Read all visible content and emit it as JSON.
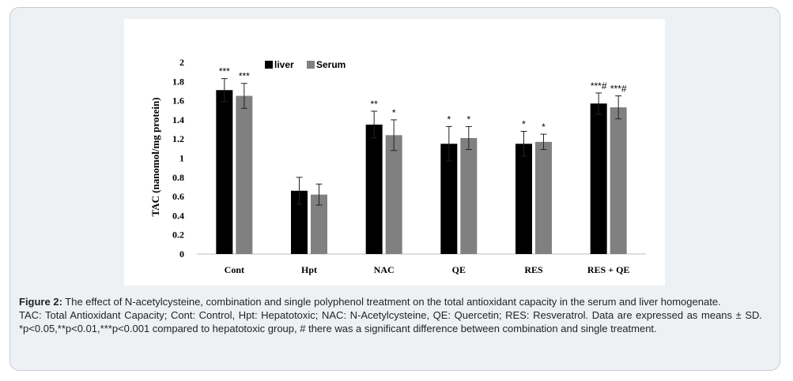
{
  "chart_data": {
    "type": "bar",
    "categories": [
      "Cont",
      "Hpt",
      "NAC",
      "QE",
      "RES",
      "RES + QE"
    ],
    "series": [
      {
        "name": "liver",
        "color": "#000000",
        "values": [
          1.71,
          0.66,
          1.35,
          1.15,
          1.15,
          1.57
        ],
        "errors": [
          0.12,
          0.14,
          0.14,
          0.18,
          0.13,
          0.11
        ],
        "annotations": [
          "***",
          "",
          "**",
          "*",
          "*",
          "***#"
        ]
      },
      {
        "name": "Serum",
        "color": "#808080",
        "values": [
          1.65,
          0.62,
          1.24,
          1.21,
          1.17,
          1.53
        ],
        "errors": [
          0.13,
          0.11,
          0.16,
          0.12,
          0.08,
          0.12
        ],
        "annotations": [
          "***",
          "",
          "*",
          "*",
          "*",
          "***#"
        ]
      }
    ],
    "title": "",
    "xlabel": "",
    "ylabel": "TAC (nanomol/mg protein)",
    "ylim": [
      0,
      2
    ],
    "yticks": [
      0,
      0.2,
      0.4,
      0.6,
      0.8,
      1,
      1.2,
      1.4,
      1.6,
      1.8,
      2
    ],
    "ytick_labels": [
      "0",
      "0.2",
      "0.4",
      "0.6",
      "0.8",
      "1",
      "1.2",
      "1.4",
      "1.6",
      "1.8",
      "2"
    ],
    "grid": false,
    "legend_position": "top-left"
  },
  "caption": {
    "figure_label": "Figure 2:",
    "figure_text": "The effect of N-acetylcysteine, combination and single polyphenol treatment on the total antioxidant capacity in the serum and liver homogenate.",
    "notes": "TAC: Total Antioxidant Capacity; Cont: Control, Hpt: Hepatotoxic; NAC: N-Acetylcysteine, QE: Quercetin; RES: Resveratrol. Data are expressed as means ± SD. *p<0.05,**p<0.01,***p<0.001 compared to hepatotoxic group, # there was a significant difference between combination and single treatment."
  }
}
